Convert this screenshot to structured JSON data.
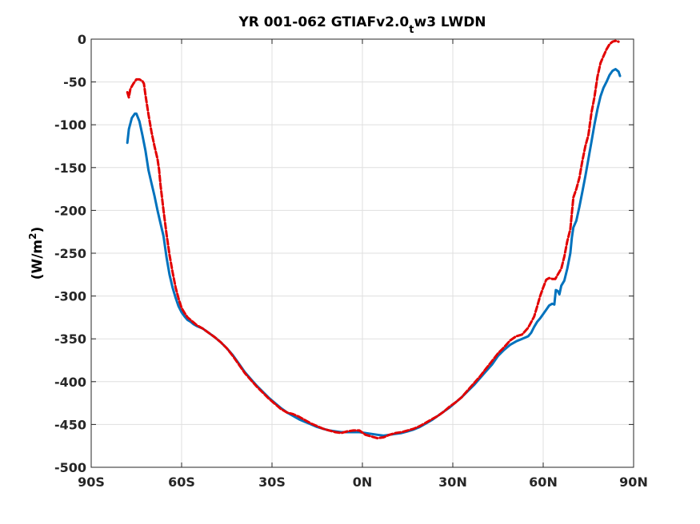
{
  "chart_data": {
    "type": "line",
    "title": "YR 001-062 GTIAFv2.0",
    "title_subscript": "t",
    "title_suffix": "w3 LWDN",
    "xlabel": "",
    "ylabel": "(W/m",
    "ylabel_superscript": "2",
    "ylabel_suffix": ")",
    "xlim": [
      -90,
      90
    ],
    "ylim": [
      -500,
      0
    ],
    "x_ticks": [
      {
        "value": -90,
        "label": "90S"
      },
      {
        "value": -60,
        "label": "60S"
      },
      {
        "value": -30,
        "label": "30S"
      },
      {
        "value": 0,
        "label": "0N"
      },
      {
        "value": 30,
        "label": "30N"
      },
      {
        "value": 60,
        "label": "60N"
      },
      {
        "value": 90,
        "label": "90N"
      }
    ],
    "y_ticks": [
      {
        "value": 0,
        "label": "0"
      },
      {
        "value": -50,
        "label": "-50"
      },
      {
        "value": -100,
        "label": "-100"
      },
      {
        "value": -150,
        "label": "-150"
      },
      {
        "value": -200,
        "label": "-200"
      },
      {
        "value": -250,
        "label": "-250"
      },
      {
        "value": -300,
        "label": "-300"
      },
      {
        "value": -350,
        "label": "-350"
      },
      {
        "value": -400,
        "label": "-400"
      },
      {
        "value": -450,
        "label": "-450"
      },
      {
        "value": -500,
        "label": "-500"
      }
    ],
    "grid": true,
    "series": [
      {
        "color": "#0072bd",
        "style": "solid",
        "points": [
          [
            -78,
            -121
          ],
          [
            -77.5,
            -105
          ],
          [
            -76.5,
            -92
          ],
          [
            -75.5,
            -87
          ],
          [
            -75,
            -87
          ],
          [
            -74,
            -96
          ],
          [
            -73,
            -112
          ],
          [
            -72,
            -130
          ],
          [
            -71,
            -153
          ],
          [
            -70,
            -168
          ],
          [
            -69,
            -183
          ],
          [
            -68,
            -200
          ],
          [
            -67,
            -215
          ],
          [
            -66,
            -230
          ],
          [
            -65,
            -255
          ],
          [
            -64,
            -275
          ],
          [
            -63,
            -290
          ],
          [
            -62,
            -302
          ],
          [
            -61,
            -312
          ],
          [
            -60,
            -319
          ],
          [
            -59,
            -324
          ],
          [
            -58,
            -328
          ],
          [
            -57,
            -330
          ],
          [
            -56,
            -333
          ],
          [
            -55,
            -335
          ],
          [
            -53,
            -338
          ],
          [
            -51,
            -343
          ],
          [
            -49,
            -348
          ],
          [
            -47,
            -354
          ],
          [
            -45,
            -361
          ],
          [
            -43,
            -369
          ],
          [
            -41,
            -379
          ],
          [
            -39,
            -389
          ],
          [
            -37,
            -397
          ],
          [
            -35,
            -405
          ],
          [
            -33,
            -412
          ],
          [
            -31,
            -419
          ],
          [
            -29,
            -425
          ],
          [
            -27,
            -431
          ],
          [
            -25,
            -436
          ],
          [
            -23,
            -440
          ],
          [
            -21,
            -444
          ],
          [
            -19,
            -447
          ],
          [
            -17,
            -450
          ],
          [
            -15,
            -453
          ],
          [
            -13,
            -455
          ],
          [
            -11,
            -457
          ],
          [
            -9,
            -458
          ],
          [
            -7,
            -459
          ],
          [
            -5,
            -459
          ],
          [
            -3,
            -459
          ],
          [
            -1,
            -459
          ],
          [
            1,
            -460
          ],
          [
            3,
            -461
          ],
          [
            5,
            -462
          ],
          [
            7,
            -463
          ],
          [
            9,
            -462
          ],
          [
            11,
            -461
          ],
          [
            13,
            -460
          ],
          [
            15,
            -458
          ],
          [
            17,
            -456
          ],
          [
            19,
            -453
          ],
          [
            21,
            -449
          ],
          [
            23,
            -445
          ],
          [
            25,
            -440
          ],
          [
            27,
            -435
          ],
          [
            29,
            -430
          ],
          [
            31,
            -424
          ],
          [
            33,
            -418
          ],
          [
            35,
            -411
          ],
          [
            37,
            -404
          ],
          [
            39,
            -396
          ],
          [
            41,
            -388
          ],
          [
            43,
            -380
          ],
          [
            45,
            -370
          ],
          [
            47,
            -363
          ],
          [
            49,
            -357
          ],
          [
            51,
            -353
          ],
          [
            53,
            -350
          ],
          [
            55,
            -347
          ],
          [
            56,
            -343
          ],
          [
            57,
            -336
          ],
          [
            58,
            -330
          ],
          [
            59,
            -326
          ],
          [
            60,
            -321
          ],
          [
            61,
            -316
          ],
          [
            62,
            -311
          ],
          [
            63,
            -309
          ],
          [
            63.7,
            -310
          ],
          [
            64.2,
            -293
          ],
          [
            64.8,
            -294
          ],
          [
            65.4,
            -298
          ],
          [
            66,
            -288
          ],
          [
            67,
            -282
          ],
          [
            68,
            -268
          ],
          [
            69,
            -250
          ],
          [
            69.5,
            -232
          ],
          [
            70,
            -220
          ],
          [
            71,
            -212
          ],
          [
            72,
            -196
          ],
          [
            73,
            -178
          ],
          [
            74,
            -160
          ],
          [
            75,
            -140
          ],
          [
            76,
            -120
          ],
          [
            77,
            -100
          ],
          [
            78,
            -82
          ],
          [
            79,
            -67
          ],
          [
            80,
            -57
          ],
          [
            81,
            -50
          ],
          [
            82,
            -42
          ],
          [
            83,
            -37
          ],
          [
            84,
            -35
          ],
          [
            85,
            -38
          ],
          [
            85.5,
            -43
          ]
        ]
      },
      {
        "color": "#e20000",
        "style": "dashed",
        "points": [
          [
            -78,
            -62
          ],
          [
            -77.5,
            -68
          ],
          [
            -77,
            -58
          ],
          [
            -76,
            -52
          ],
          [
            -75,
            -47
          ],
          [
            -74,
            -47
          ],
          [
            -73,
            -49
          ],
          [
            -72.5,
            -52
          ],
          [
            -72,
            -65
          ],
          [
            -71,
            -88
          ],
          [
            -70,
            -108
          ],
          [
            -69,
            -125
          ],
          [
            -68,
            -140
          ],
          [
            -67.5,
            -152
          ],
          [
            -67,
            -170
          ],
          [
            -66,
            -200
          ],
          [
            -65,
            -228
          ],
          [
            -64,
            -252
          ],
          [
            -63,
            -272
          ],
          [
            -62,
            -290
          ],
          [
            -61,
            -303
          ],
          [
            -60,
            -314
          ],
          [
            -59,
            -320
          ],
          [
            -58,
            -325
          ],
          [
            -57,
            -328
          ],
          [
            -56,
            -331
          ],
          [
            -55,
            -334
          ],
          [
            -53,
            -338
          ],
          [
            -51,
            -343
          ],
          [
            -49,
            -348
          ],
          [
            -47,
            -354
          ],
          [
            -45,
            -361
          ],
          [
            -43,
            -370
          ],
          [
            -41,
            -380
          ],
          [
            -39,
            -390
          ],
          [
            -37,
            -398
          ],
          [
            -35,
            -406
          ],
          [
            -33,
            -413
          ],
          [
            -31,
            -420
          ],
          [
            -29,
            -426
          ],
          [
            -27,
            -432
          ],
          [
            -25,
            -436
          ],
          [
            -23,
            -438
          ],
          [
            -21,
            -441
          ],
          [
            -19,
            -445
          ],
          [
            -17,
            -449
          ],
          [
            -15,
            -452
          ],
          [
            -13,
            -455
          ],
          [
            -11,
            -457
          ],
          [
            -9,
            -459
          ],
          [
            -7,
            -460
          ],
          [
            -5,
            -458
          ],
          [
            -3,
            -457
          ],
          [
            -1,
            -457
          ],
          [
            1,
            -462
          ],
          [
            3,
            -464
          ],
          [
            5,
            -466
          ],
          [
            7,
            -465
          ],
          [
            9,
            -462
          ],
          [
            11,
            -460
          ],
          [
            13,
            -459
          ],
          [
            15,
            -457
          ],
          [
            17,
            -455
          ],
          [
            19,
            -452
          ],
          [
            21,
            -448
          ],
          [
            23,
            -444
          ],
          [
            25,
            -440
          ],
          [
            27,
            -435
          ],
          [
            29,
            -429
          ],
          [
            31,
            -424
          ],
          [
            33,
            -418
          ],
          [
            35,
            -410
          ],
          [
            37,
            -402
          ],
          [
            39,
            -394
          ],
          [
            41,
            -385
          ],
          [
            43,
            -376
          ],
          [
            45,
            -367
          ],
          [
            47,
            -360
          ],
          [
            49,
            -352
          ],
          [
            51,
            -347
          ],
          [
            53,
            -345
          ],
          [
            55,
            -337
          ],
          [
            57,
            -324
          ],
          [
            58,
            -312
          ],
          [
            59,
            -300
          ],
          [
            60,
            -290
          ],
          [
            61,
            -281
          ],
          [
            62,
            -279
          ],
          [
            63,
            -280
          ],
          [
            64,
            -280
          ],
          [
            65,
            -274
          ],
          [
            66,
            -268
          ],
          [
            67,
            -254
          ],
          [
            68,
            -236
          ],
          [
            69,
            -222
          ],
          [
            70,
            -185
          ],
          [
            71,
            -175
          ],
          [
            72,
            -162
          ],
          [
            73,
            -142
          ],
          [
            74,
            -125
          ],
          [
            75,
            -112
          ],
          [
            76,
            -86
          ],
          [
            77,
            -68
          ],
          [
            78,
            -44
          ],
          [
            79,
            -28
          ],
          [
            80,
            -20
          ],
          [
            81,
            -12
          ],
          [
            82,
            -6
          ],
          [
            83,
            -3
          ],
          [
            84,
            -2
          ],
          [
            85,
            -3
          ]
        ]
      }
    ]
  }
}
